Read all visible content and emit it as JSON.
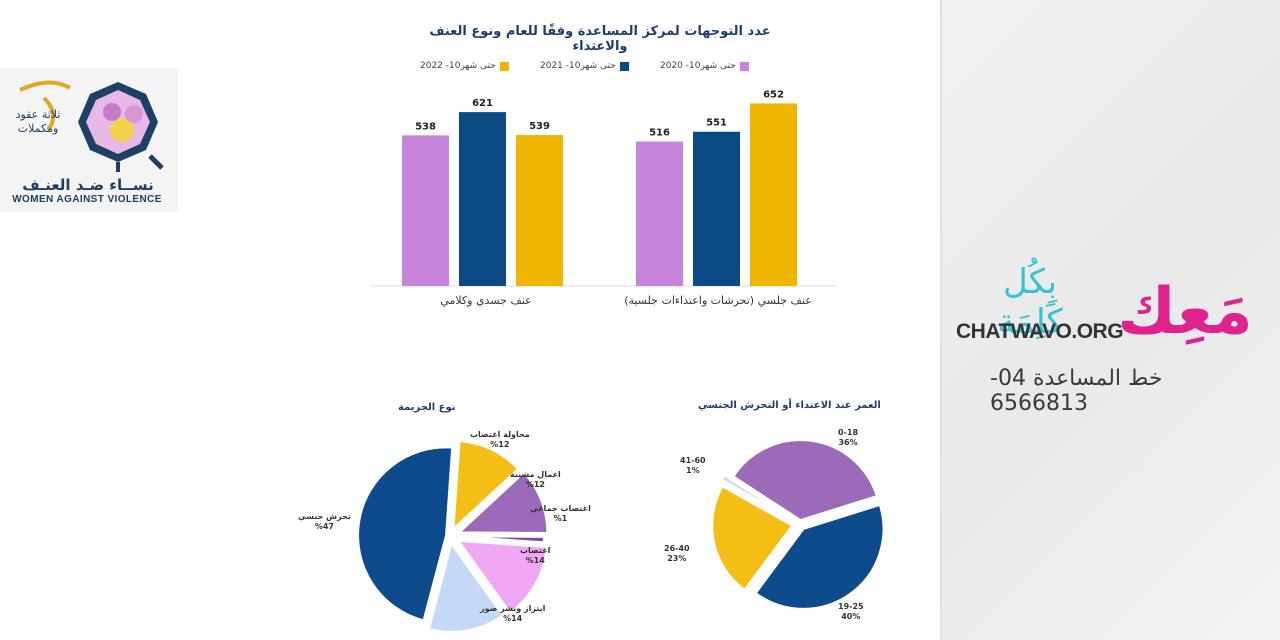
{
  "logo": {
    "arabic_name": "نســاء ضـد العنـف",
    "english_name": "WOMEN AGAINST VIOLENCE",
    "decades": "ثلاثة عقود ومكملات"
  },
  "side": {
    "tagline_small": "بِكُل كَلِمَة",
    "tagline_big": "مَعِك",
    "site": "CHATWAVO.ORG",
    "helpline": "خط المساعدة 04-6566813"
  },
  "colors": {
    "s2020": "#c684dc",
    "s2021": "#0b4a85",
    "s2022": "#efb600",
    "pie_blue": "#0d4b8c",
    "pie_yellow": "#f5be14",
    "pie_purple": "#9b6bb9",
    "pie_pink": "#f0a8f4",
    "pie_light": "#c5d8f5"
  },
  "chart_data": [
    {
      "type": "bar",
      "title": "عدد التوجهات لمركز المساعدة وفقًا للعام ونوع العنف والاعتداء",
      "categories": [
        "عنف جلسي (تحرشات واعتداءات جلسية)",
        "عنف جسدي وكلامي"
      ],
      "series": [
        {
          "name": "حتى شهر10- 2020",
          "values": [
            516,
            538
          ]
        },
        {
          "name": "حتى شهر10- 2021",
          "values": [
            551,
            621
          ]
        },
        {
          "name": "حتى شهر10- 2022",
          "values": [
            652,
            539
          ]
        }
      ],
      "ylim": [
        0,
        700
      ],
      "grid": false,
      "legend": "top"
    },
    {
      "type": "pie",
      "title": "نوع الجريمة",
      "slices": [
        {
          "label": "محاولة اغتصاب",
          "value": 12,
          "text": "%12"
        },
        {
          "label": "اعمال مشينة",
          "value": 12,
          "text": "%12"
        },
        {
          "label": "اغتصاب جماعي",
          "value": 1,
          "text": "%1"
        },
        {
          "label": "اغتصاب",
          "value": 14,
          "text": "%14"
        },
        {
          "label": "ابتزاز ونشر صور",
          "value": 14,
          "text": "%14"
        },
        {
          "label": "تحرش جنسي",
          "value": 47,
          "text": "%47"
        }
      ]
    },
    {
      "type": "pie",
      "title": "العمر عند الاعتداء أو التحرش الجنسي",
      "slices": [
        {
          "label": "0-18",
          "value": 36,
          "text": "36%"
        },
        {
          "label": "19-25",
          "value": 40,
          "text": "40%"
        },
        {
          "label": "26-40",
          "value": 23,
          "text": "23%"
        },
        {
          "label": "41-60",
          "value": 1,
          "text": "1%"
        }
      ]
    }
  ]
}
